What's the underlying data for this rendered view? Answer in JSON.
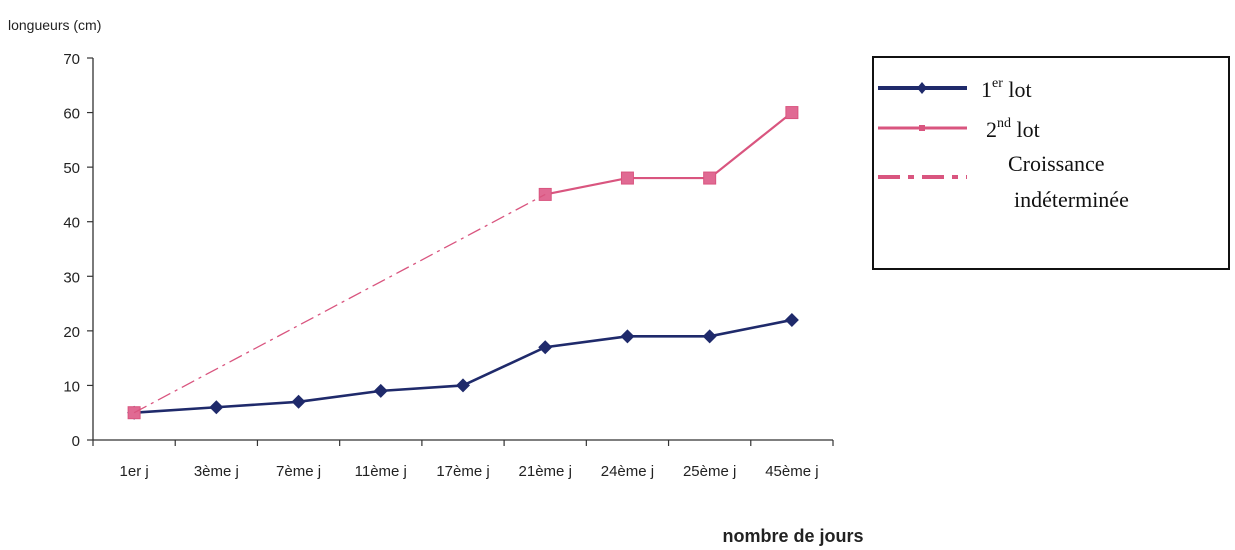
{
  "chart_data": {
    "type": "line",
    "ylabel": "longueurs (cm)",
    "xlabel": "nombre de jours",
    "ylim": [
      0,
      70
    ],
    "yticks": [
      0,
      10,
      20,
      30,
      40,
      50,
      60,
      70
    ],
    "categories": [
      "1er j",
      "3ème j",
      "7ème j",
      "11ème j",
      "17ème j",
      "21ème j",
      "24ème j",
      "25ème j",
      "45ème j"
    ],
    "grid": false,
    "legend_position": "right",
    "series": [
      {
        "name": "1er lot",
        "color": "#1f2a6b",
        "marker": "diamond",
        "values": [
          5,
          6,
          7,
          9,
          10,
          17,
          19,
          19,
          22
        ]
      },
      {
        "name": "2nd lot",
        "color": "#d9557f",
        "marker": "square",
        "values": [
          5,
          null,
          null,
          null,
          null,
          45,
          48,
          48,
          60
        ]
      },
      {
        "name": "Croissance indéterminée",
        "color": "#d9557f",
        "style": "dash-dot",
        "x": [
          "1er j",
          "21ème j"
        ],
        "values": [
          5,
          45
        ]
      }
    ],
    "legend": {
      "lot1_main": "1",
      "lot1_sup": "er",
      "lot1_suffix": " lot",
      "lot2_main": "2",
      "lot2_sup": "nd",
      "lot2_suffix": " lot",
      "croissance_line1": "Croissance",
      "croissance_line2": "indéterminée"
    }
  }
}
